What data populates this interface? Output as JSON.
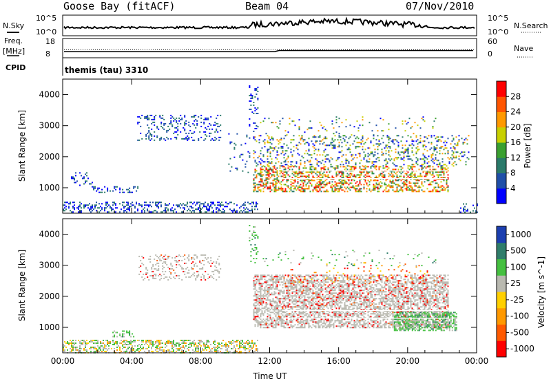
{
  "header": {
    "title": "Goose Bay (fitACF)",
    "beam": "Beam 04",
    "date": "07/Nov/2010"
  },
  "strip_labels": {
    "nsky": "N.Sky",
    "nsearch": "N.Search",
    "freq": "Freq.",
    "freq_unit": "[MHz]",
    "nave": "Nave",
    "cpid": "CPID",
    "cpid_value": "themis (tau) 3310"
  },
  "strip_ticks": {
    "nsky_top": "10^5",
    "nsky_bottom": "10^0",
    "nsearch_top": "10^5",
    "nsearch_bottom": "10^0",
    "freq_top": "18",
    "freq_bottom": "8",
    "nave_top": "60",
    "nave_bottom": "0"
  },
  "colors": {
    "power_scale": [
      "#0000ff",
      "#1f4fa8",
      "#2a7a6a",
      "#3aa030",
      "#c8d000",
      "#ff9900",
      "#ff5500",
      "#ff0000"
    ],
    "velocity_scale": [
      "#1c3fb0",
      "#2f7d6a",
      "#45c040",
      "#b9b9b0",
      "#ffd000",
      "#ff9900",
      "#ff5a00",
      "#ff0000"
    ]
  },
  "chart_data": [
    {
      "type": "heatmap",
      "name": "power",
      "ylabel": "Slant Range [km]",
      "yticks": [
        "1000",
        "2000",
        "3000",
        "4000"
      ],
      "ylim": [
        180,
        4500
      ],
      "colorbar_label": "Power [dB]",
      "colorbar_ticks": [
        "4",
        "8",
        "12",
        "16",
        "20",
        "24",
        "28"
      ]
    },
    {
      "type": "heatmap",
      "name": "velocity",
      "ylabel": "Slant Range [km]",
      "yticks": [
        "1000",
        "2000",
        "3000",
        "4000"
      ],
      "ylim": [
        180,
        4500
      ],
      "colorbar_label": "Velocity [m s^-1]",
      "colorbar_ticks": [
        "1000",
        "500",
        "100",
        "25",
        "-25",
        "-100",
        "-500",
        "-1000"
      ],
      "xlabel": "Time UT",
      "xticks": [
        "00:00",
        "04:00",
        "08:00",
        "12:00",
        "16:00",
        "20:00",
        "00:00"
      ]
    }
  ]
}
